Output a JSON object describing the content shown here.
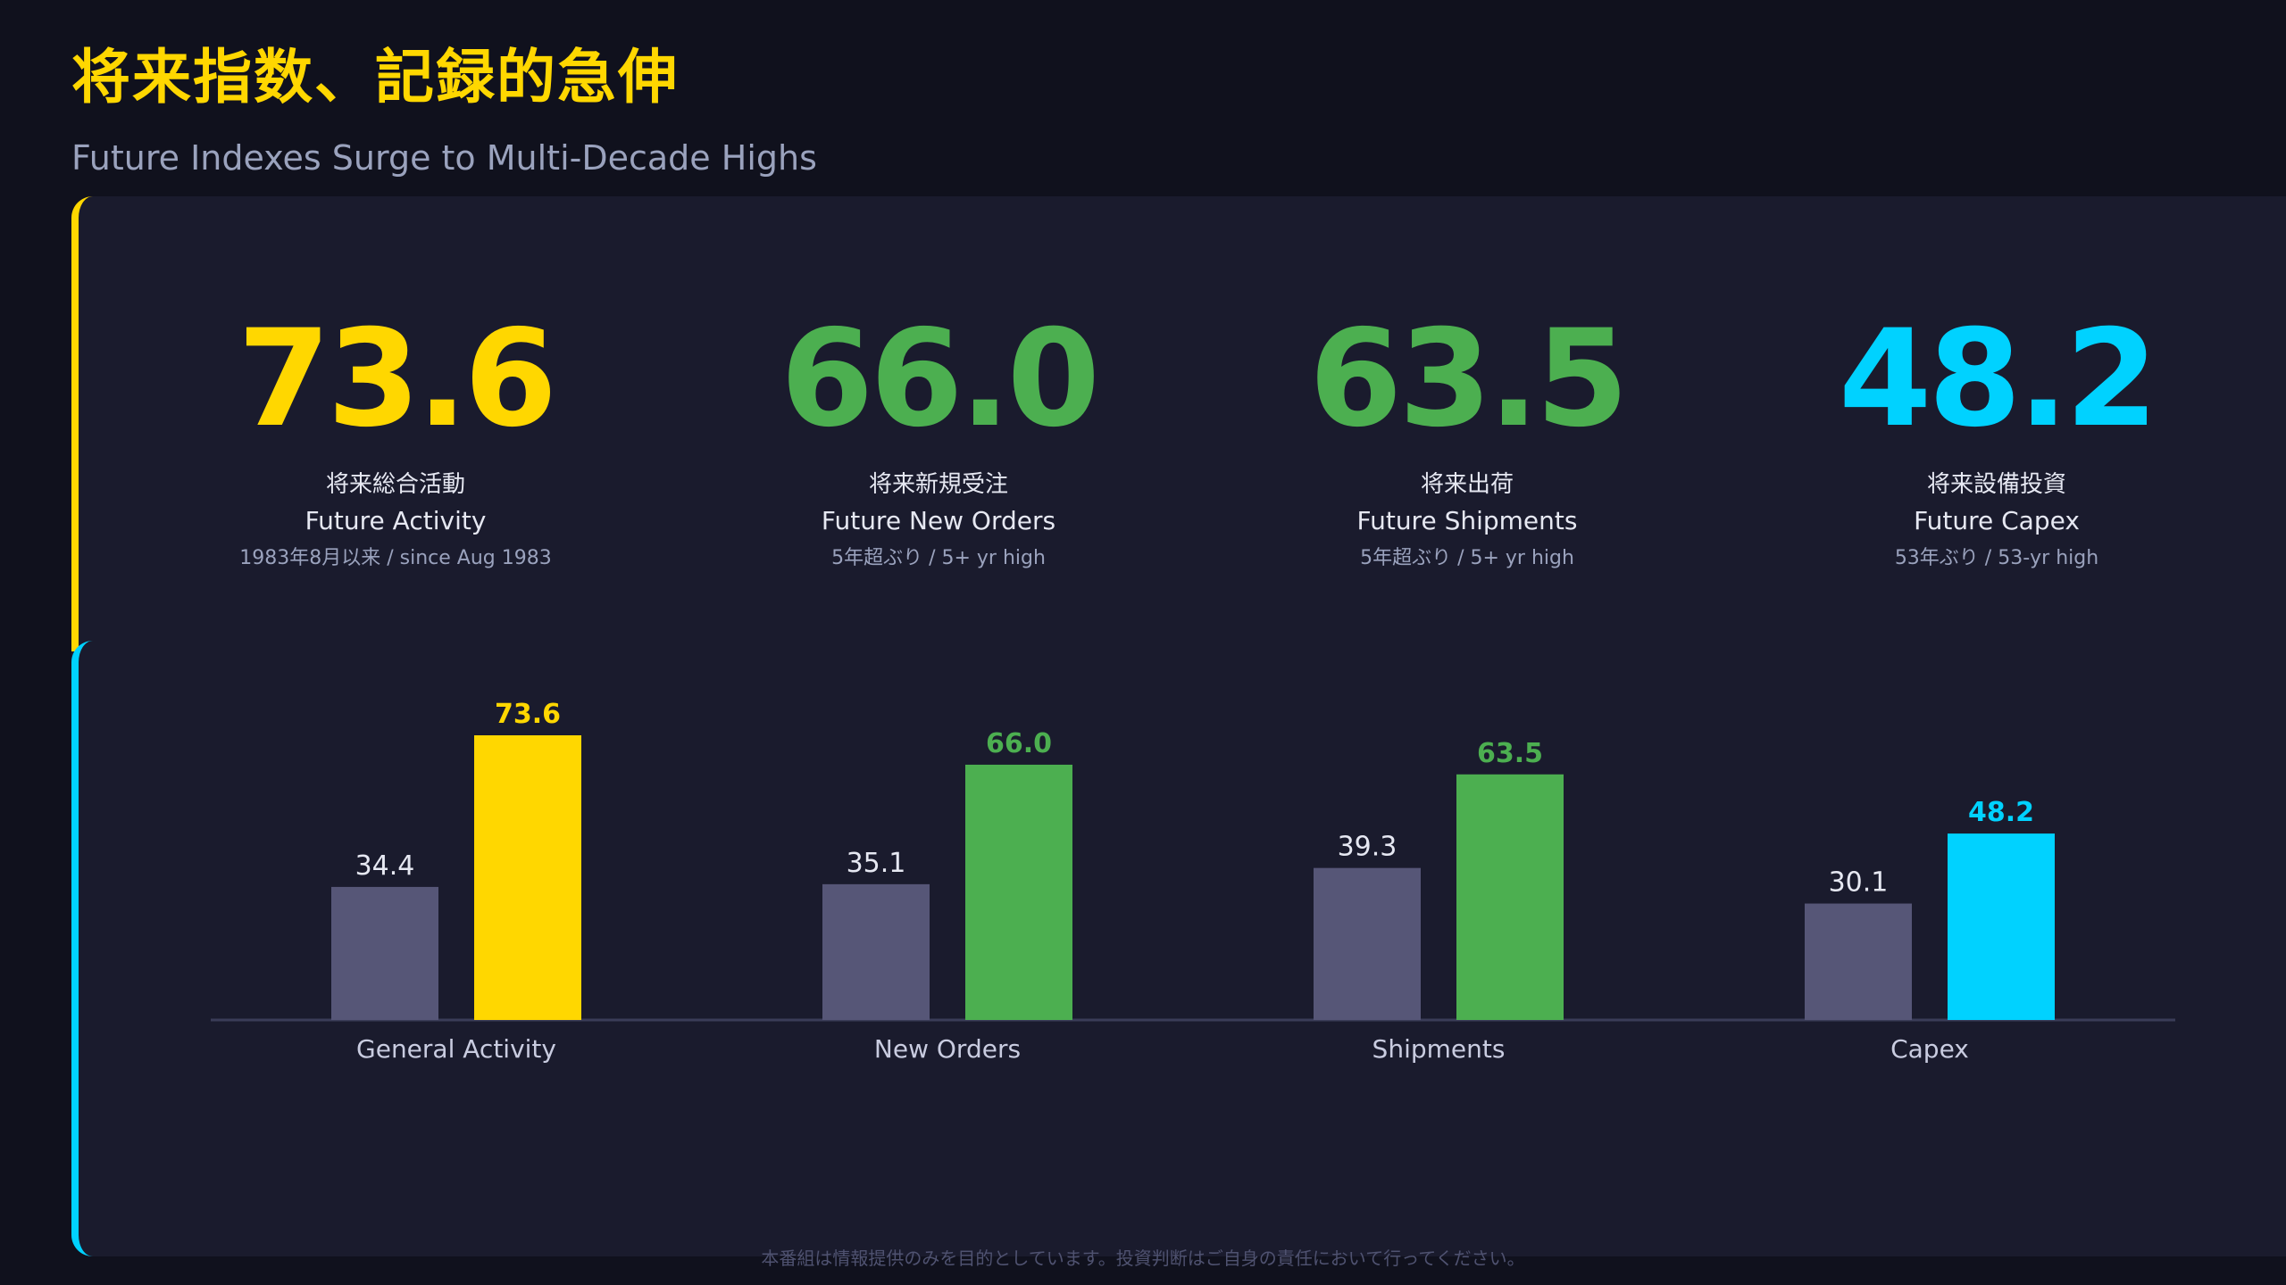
{
  "title": "将来指数、記録的急伸",
  "subtitle": "Future Indexes Surge to Multi-Decade Highs",
  "kpis": [
    {
      "value": "73.6",
      "jp": "将来総合活動",
      "en": "Future Activity",
      "note": "1983年8月以来 / since Aug 1983",
      "color": "#ffd700"
    },
    {
      "value": "66.0",
      "jp": "将来新規受注",
      "en": "Future New Orders",
      "note": "5年超ぶり / 5+ yr high",
      "color": "#4caf50"
    },
    {
      "value": "63.5",
      "jp": "将来出荷",
      "en": "Future Shipments",
      "note": "5年超ぶり / 5+ yr high",
      "color": "#4caf50"
    },
    {
      "value": "48.2",
      "jp": "将来設備投資",
      "en": "Future Capex",
      "note": "53年ぶり / 53-yr high",
      "color": "#00d2ff"
    }
  ],
  "chart_data": {
    "type": "bar",
    "categories": [
      "General Activity",
      "New Orders",
      "Shipments",
      "Capex"
    ],
    "series": [
      {
        "values": [
          34.4,
          35.1,
          39.3,
          30.1
        ],
        "color": "#565677"
      },
      {
        "values": [
          73.6,
          66.0,
          63.5,
          48.2
        ],
        "colors": [
          "#ffd700",
          "#4caf50",
          "#4caf50",
          "#00d2ff"
        ]
      }
    ],
    "ylim": [
      0,
      80
    ],
    "grid": false
  },
  "disclaimer": "本番組は情報提供のみを目的としています。投資判断はご自身の責任において行ってください。"
}
